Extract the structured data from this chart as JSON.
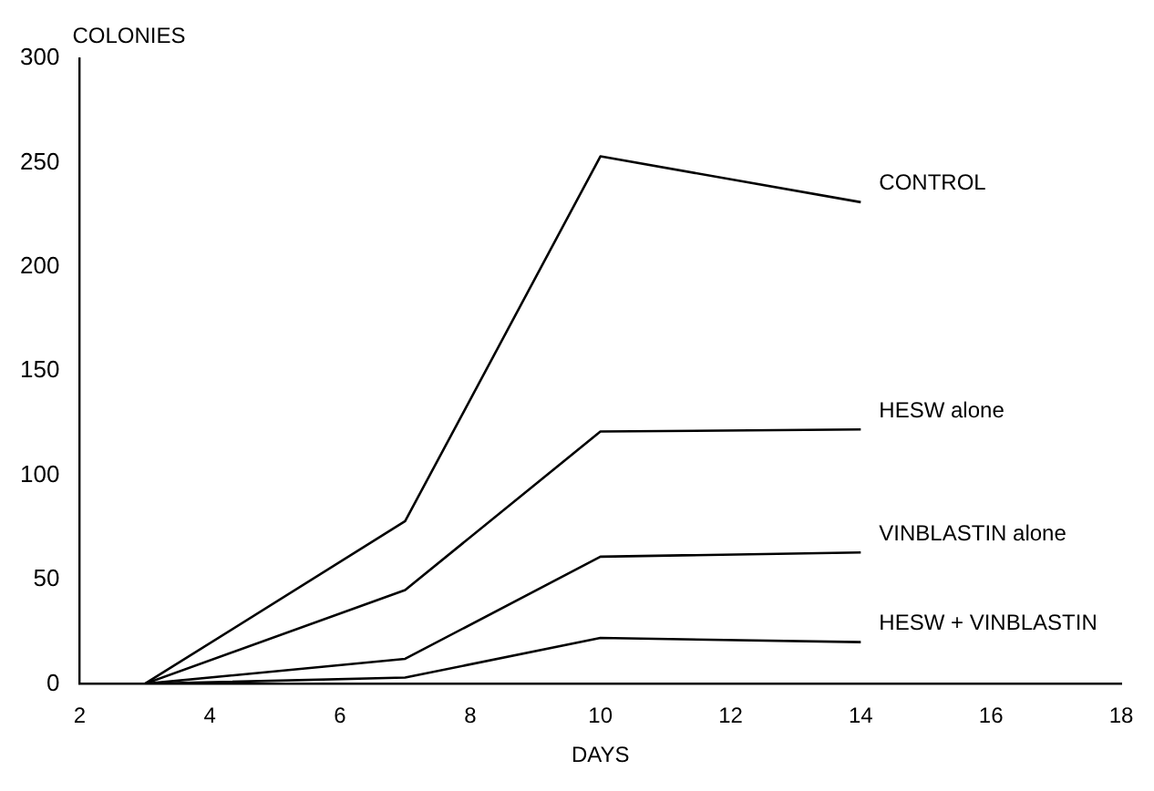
{
  "chart_data": {
    "type": "line",
    "xlabel": "DAYS",
    "ylabel": "COLONIES",
    "x": [
      3,
      7,
      10,
      14
    ],
    "series": [
      {
        "name": "CONTROL",
        "color": "#000000",
        "values": [
          0,
          78,
          253,
          231
        ]
      },
      {
        "name": "HESW alone",
        "color": "#000000",
        "values": [
          0,
          45,
          121,
          122
        ]
      },
      {
        "name": "VINBLASTIN alone",
        "color": "#000000",
        "values": [
          0,
          12,
          61,
          63
        ]
      },
      {
        "name": "HESW + VINBLASTIN",
        "color": "#000000",
        "values": [
          0,
          3,
          22,
          20
        ]
      }
    ],
    "xlim": [
      2,
      18
    ],
    "xticks": [
      2,
      4,
      6,
      8,
      10,
      12,
      14,
      16,
      18
    ],
    "ylim": [
      0,
      300
    ],
    "yticks": [
      0,
      50,
      100,
      150,
      200,
      250,
      300
    ],
    "grid": false,
    "legend": false,
    "marker": "none",
    "line_style": "solid"
  }
}
